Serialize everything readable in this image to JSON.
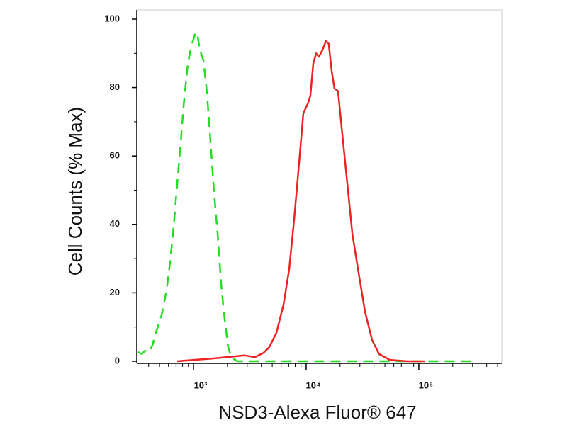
{
  "chart_data": {
    "type": "line",
    "x_axis_label": "NSD3-Alexa Fluor® 647",
    "y_axis_label": "Cell Counts (% Max)",
    "x_scale": "log",
    "xlim": [
      314,
      545000
    ],
    "ylim": [
      0,
      100
    ],
    "xticks": [
      {
        "value": 1000,
        "label": "10³"
      },
      {
        "value": 10000,
        "label": "10⁴"
      },
      {
        "value": 100000,
        "label": "10⁵"
      }
    ],
    "minor_xticks": [
      400,
      500,
      600,
      700,
      800,
      900,
      2000,
      3000,
      4000,
      5000,
      6000,
      7000,
      8000,
      9000,
      20000,
      30000,
      40000,
      50000,
      60000,
      70000,
      80000,
      90000,
      200000,
      300000,
      400000,
      500000
    ],
    "yticks": [
      0,
      20,
      40,
      60,
      80,
      100
    ],
    "minor_yticks": [
      10,
      30,
      50,
      70,
      90
    ],
    "series": [
      {
        "color": "#22dd22",
        "dashed": true,
        "x": [
          323,
          347,
          373,
          402,
          432,
          464,
          521,
          577,
          620,
          667,
          717,
          771,
          828,
          891,
          957,
          1030,
          1075,
          1140,
          1225,
          1316,
          1416,
          1521,
          1636,
          1758,
          1890,
          2032,
          2188,
          2455,
          2838,
          10000,
          300000
        ],
        "values": [
          2.7,
          2.1,
          3.1,
          2.7,
          4.6,
          8.3,
          13.5,
          20.7,
          29,
          39.3,
          51.8,
          64.2,
          76.6,
          87,
          92,
          95.5,
          96.1,
          91,
          88,
          78.7,
          64.2,
          49.7,
          37.3,
          22.8,
          12.4,
          4.1,
          1,
          0,
          0,
          0,
          0
        ]
      },
      {
        "color": "#ee2222",
        "dashed": false,
        "x": [
          717,
          1478,
          2283,
          2838,
          3526,
          4195,
          4703,
          5444,
          6300,
          7070,
          7827,
          8660,
          9450,
          10440,
          10900,
          11560,
          12260,
          12990,
          13960,
          14990,
          15870,
          16830,
          17840,
          19180,
          20950,
          23200,
          25690,
          28860,
          33310,
          38480,
          44410,
          55260,
          79300,
          114000
        ],
        "values": [
          0,
          0.8,
          1.4,
          1.7,
          1.2,
          2.5,
          4.1,
          8.3,
          16.6,
          26.9,
          41.4,
          58,
          72.5,
          75.6,
          77.6,
          87,
          90,
          89,
          91,
          93.6,
          92.8,
          85,
          79.7,
          79,
          66.3,
          51.8,
          37.3,
          26.9,
          14.5,
          6.2,
          2.1,
          0.4,
          0,
          0
        ]
      }
    ]
  }
}
